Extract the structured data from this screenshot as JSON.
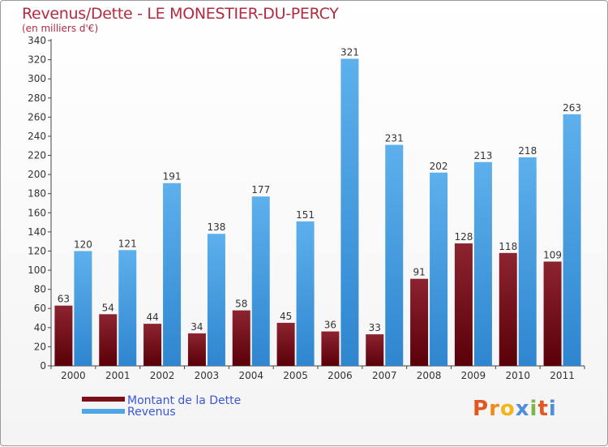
{
  "header": {
    "title": "Revenus/Dette - LE MONESTIER-DU-PERCY",
    "subtitle": "(en milliers d'€)"
  },
  "legend": {
    "debt_label": "Montant de la Dette",
    "revenue_label": "Revenus"
  },
  "logo": {
    "text": "Proxiti",
    "letters": [
      "P",
      "r",
      "o",
      "x",
      "i",
      "t",
      "i"
    ]
  },
  "colors": {
    "debt": "#7a1018",
    "revenue": "#4ea6e6",
    "title": "#b22b3f",
    "legend_text": "#3a56d8"
  },
  "chart_data": {
    "type": "bar",
    "categories": [
      "2000",
      "2001",
      "2002",
      "2003",
      "2004",
      "2005",
      "2006",
      "2007",
      "2008",
      "2009",
      "2010",
      "2011"
    ],
    "series": [
      {
        "name": "Montant de la Dette",
        "values": [
          63,
          54,
          44,
          34,
          58,
          45,
          36,
          33,
          91,
          128,
          118,
          109
        ]
      },
      {
        "name": "Revenus",
        "values": [
          120,
          121,
          191,
          138,
          177,
          151,
          321,
          231,
          202,
          213,
          218,
          263
        ]
      }
    ],
    "title": "Revenus/Dette - LE MONESTIER-DU-PERCY",
    "subtitle": "(en milliers d'€)",
    "ylim": [
      0,
      340
    ],
    "yticks": [
      0,
      20,
      40,
      60,
      80,
      100,
      120,
      140,
      160,
      180,
      200,
      220,
      240,
      260,
      280,
      300,
      320,
      340
    ],
    "grid": false,
    "legend_position": "bottom-left"
  }
}
